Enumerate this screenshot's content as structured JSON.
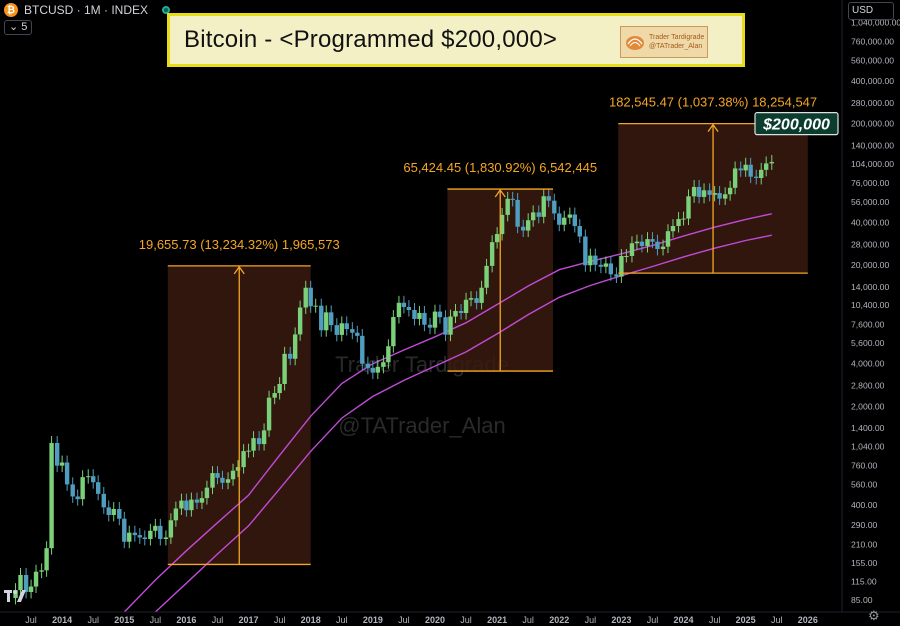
{
  "header": {
    "symbol_text": "BTCUSD · 1M · INDEX",
    "logo_glyph": "₿",
    "interval_value": "5",
    "currency": "USD"
  },
  "banner": {
    "title": "Bitcoin - <Programmed $200,000>",
    "badge_line1": "Trader Tardigrade",
    "badge_line2": "@TATrader_Alan"
  },
  "watermark": {
    "line1": "Trader Tardigrade",
    "line2": "@TATrader_Alan"
  },
  "colors": {
    "background": "#000000",
    "up_candle": "#7bd17a",
    "down_candle": "#4f9ec0",
    "moving_average": "#c04bd6",
    "measure": "#f5a623",
    "box_fill": "#3a1a0f",
    "banner_fill": "#f2f0c4",
    "banner_border": "#e8dc16"
  },
  "chart_data": {
    "type": "candlestick",
    "scale": "log",
    "ylim": [
      70,
      1500000
    ],
    "x_tick_labels": [
      "Jul",
      "2014",
      "Jul",
      "2015",
      "Jul",
      "2016",
      "Jul",
      "2017",
      "Jul",
      "2018",
      "Jul",
      "2019",
      "Jul",
      "2020",
      "Jul",
      "2021",
      "Jul",
      "2022",
      "Jul",
      "2023",
      "Jul",
      "2024",
      "Jul",
      "2025",
      "Jul",
      "2026",
      "Jul"
    ],
    "x_ticks": [
      2013.5,
      2014,
      2014.5,
      2015,
      2015.5,
      2016,
      2016.5,
      2017,
      2017.5,
      2018,
      2018.5,
      2019,
      2019.5,
      2020,
      2020.5,
      2021,
      2021.5,
      2022,
      2022.5,
      2023,
      2023.5,
      2024,
      2024.5,
      2025,
      2025.5,
      2026,
      2026.5
    ],
    "y_ticks": [
      85,
      115,
      155,
      210,
      290,
      400,
      560,
      760,
      1040,
      1400,
      2000,
      2800,
      4000,
      5600,
      7600,
      10400,
      14000,
      20000,
      28000,
      40000,
      56000,
      76000,
      104000,
      140000,
      200000,
      280000,
      400000,
      560000,
      760000,
      1040000
    ],
    "y_tick_labels": [
      "85.00",
      "115.00",
      "155.00",
      "210.00",
      "290.00",
      "400.00",
      "560.00",
      "760.00",
      "1,040.00",
      "1,400.00",
      "2,000.00",
      "2,800.00",
      "4,000.00",
      "5,600.00",
      "7,600.00",
      "10,400.00",
      "14,000.00",
      "20,000.00",
      "28,000.00",
      "40,000.00",
      "56,000.00",
      "76,000.00",
      "104,000.00",
      "140,000.00",
      "200,000.00",
      "280,000.00",
      "400,000.00",
      "560,000.00",
      "760,000.00",
      "1,040,000.00"
    ],
    "monthly_close": [
      [
        2013.25,
        100
      ],
      [
        2013.33,
        128
      ],
      [
        2013.42,
        97
      ],
      [
        2013.5,
        106
      ],
      [
        2013.58,
        135
      ],
      [
        2013.67,
        138
      ],
      [
        2013.75,
        198
      ],
      [
        2013.83,
        1100
      ],
      [
        2013.92,
        760
      ],
      [
        2014.0,
        800
      ],
      [
        2014.08,
        560
      ],
      [
        2014.17,
        460
      ],
      [
        2014.25,
        440
      ],
      [
        2014.33,
        630
      ],
      [
        2014.42,
        640
      ],
      [
        2014.5,
        580
      ],
      [
        2014.58,
        480
      ],
      [
        2014.67,
        385
      ],
      [
        2014.75,
        340
      ],
      [
        2014.83,
        375
      ],
      [
        2014.92,
        320
      ],
      [
        2015.0,
        220
      ],
      [
        2015.08,
        255
      ],
      [
        2015.17,
        245
      ],
      [
        2015.25,
        236
      ],
      [
        2015.33,
        230
      ],
      [
        2015.42,
        263
      ],
      [
        2015.5,
        285
      ],
      [
        2015.58,
        230
      ],
      [
        2015.67,
        236
      ],
      [
        2015.75,
        312
      ],
      [
        2015.83,
        378
      ],
      [
        2015.92,
        430
      ],
      [
        2016.0,
        368
      ],
      [
        2016.08,
        437
      ],
      [
        2016.17,
        416
      ],
      [
        2016.25,
        448
      ],
      [
        2016.33,
        531
      ],
      [
        2016.42,
        673
      ],
      [
        2016.5,
        624
      ],
      [
        2016.58,
        575
      ],
      [
        2016.67,
        609
      ],
      [
        2016.75,
        700
      ],
      [
        2016.83,
        742
      ],
      [
        2016.92,
        963
      ],
      [
        2017.0,
        970
      ],
      [
        2017.08,
        1190
      ],
      [
        2017.17,
        1080
      ],
      [
        2017.25,
        1350
      ],
      [
        2017.33,
        2300
      ],
      [
        2017.42,
        2480
      ],
      [
        2017.5,
        2875
      ],
      [
        2017.58,
        4700
      ],
      [
        2017.67,
        4340
      ],
      [
        2017.75,
        6450
      ],
      [
        2017.83,
        10000
      ],
      [
        2017.92,
        13800
      ],
      [
        2018.0,
        10200
      ],
      [
        2018.08,
        10300
      ],
      [
        2018.17,
        6900
      ],
      [
        2018.25,
        9240
      ],
      [
        2018.33,
        7500
      ],
      [
        2018.42,
        6400
      ],
      [
        2018.5,
        7730
      ],
      [
        2018.58,
        7030
      ],
      [
        2018.67,
        6630
      ],
      [
        2018.75,
        6300
      ],
      [
        2018.83,
        4000
      ],
      [
        2018.92,
        3740
      ],
      [
        2019.0,
        3460
      ],
      [
        2019.08,
        3800
      ],
      [
        2019.17,
        4100
      ],
      [
        2019.25,
        5320
      ],
      [
        2019.33,
        8560
      ],
      [
        2019.42,
        10800
      ],
      [
        2019.5,
        10080
      ],
      [
        2019.58,
        9600
      ],
      [
        2019.67,
        8300
      ],
      [
        2019.75,
        9150
      ],
      [
        2019.83,
        7550
      ],
      [
        2019.92,
        7200
      ],
      [
        2020.0,
        9350
      ],
      [
        2020.08,
        8540
      ],
      [
        2020.17,
        6420
      ],
      [
        2020.25,
        8630
      ],
      [
        2020.33,
        9450
      ],
      [
        2020.42,
        9140
      ],
      [
        2020.5,
        11350
      ],
      [
        2020.58,
        11650
      ],
      [
        2020.67,
        10780
      ],
      [
        2020.75,
        13800
      ],
      [
        2020.83,
        19700
      ],
      [
        2020.92,
        29000
      ],
      [
        2021.0,
        33100
      ],
      [
        2021.08,
        45200
      ],
      [
        2021.17,
        58800
      ],
      [
        2021.25,
        57700
      ],
      [
        2021.33,
        37300
      ],
      [
        2021.42,
        35040
      ],
      [
        2021.5,
        41460
      ],
      [
        2021.58,
        47100
      ],
      [
        2021.67,
        43800
      ],
      [
        2021.75,
        61300
      ],
      [
        2021.83,
        57000
      ],
      [
        2021.92,
        46300
      ],
      [
        2022.0,
        38500
      ],
      [
        2022.08,
        43200
      ],
      [
        2022.17,
        45500
      ],
      [
        2022.25,
        37700
      ],
      [
        2022.33,
        31800
      ],
      [
        2022.42,
        19900
      ],
      [
        2022.5,
        23300
      ],
      [
        2022.58,
        20050
      ],
      [
        2022.67,
        19430
      ],
      [
        2022.75,
        20500
      ],
      [
        2022.83,
        17170
      ],
      [
        2022.92,
        16550
      ],
      [
        2023.0,
        23140
      ],
      [
        2023.08,
        23150
      ],
      [
        2023.17,
        28480
      ],
      [
        2023.25,
        29250
      ],
      [
        2023.33,
        27220
      ],
      [
        2023.42,
        30480
      ],
      [
        2023.5,
        29230
      ],
      [
        2023.58,
        25940
      ],
      [
        2023.67,
        26960
      ],
      [
        2023.75,
        34670
      ],
      [
        2023.83,
        37720
      ],
      [
        2023.92,
        42280
      ],
      [
        2024.0,
        42580
      ],
      [
        2024.08,
        61200
      ],
      [
        2024.17,
        71300
      ],
      [
        2024.25,
        60600
      ],
      [
        2024.33,
        67500
      ],
      [
        2024.42,
        62700
      ],
      [
        2024.5,
        64600
      ],
      [
        2024.58,
        58970
      ],
      [
        2024.67,
        63300
      ],
      [
        2024.75,
        70300
      ],
      [
        2024.83,
        96400
      ],
      [
        2024.92,
        93400
      ],
      [
        2025.0,
        102400
      ],
      [
        2025.08,
        84300
      ],
      [
        2025.17,
        82500
      ],
      [
        2025.25,
        94200
      ],
      [
        2025.33,
        104600
      ],
      [
        2025.42,
        107100
      ]
    ],
    "ma_fast": [
      [
        2015.0,
        70
      ],
      [
        2015.5,
        118
      ],
      [
        2016.0,
        190
      ],
      [
        2016.5,
        300
      ],
      [
        2017.0,
        470
      ],
      [
        2017.5,
        900
      ],
      [
        2018.0,
        1700
      ],
      [
        2018.5,
        2900
      ],
      [
        2019.0,
        4000
      ],
      [
        2019.5,
        5000
      ],
      [
        2020.0,
        6200
      ],
      [
        2020.5,
        7800
      ],
      [
        2021.0,
        10500
      ],
      [
        2021.5,
        14200
      ],
      [
        2022.0,
        18500
      ],
      [
        2022.5,
        21200
      ],
      [
        2023.0,
        24000
      ],
      [
        2023.5,
        27500
      ],
      [
        2024.0,
        32000
      ],
      [
        2024.5,
        37000
      ],
      [
        2025.0,
        42000
      ],
      [
        2025.42,
        46000
      ]
    ],
    "ma_slow": [
      [
        2015.5,
        70
      ],
      [
        2016.0,
        112
      ],
      [
        2016.5,
        180
      ],
      [
        2017.0,
        285
      ],
      [
        2017.5,
        520
      ],
      [
        2018.0,
        960
      ],
      [
        2018.5,
        1650
      ],
      [
        2019.0,
        2350
      ],
      [
        2019.5,
        3050
      ],
      [
        2020.0,
        3850
      ],
      [
        2020.5,
        4850
      ],
      [
        2021.0,
        6500
      ],
      [
        2021.5,
        8900
      ],
      [
        2022.0,
        11800
      ],
      [
        2022.5,
        14300
      ],
      [
        2023.0,
        16800
      ],
      [
        2023.5,
        19500
      ],
      [
        2024.0,
        22800
      ],
      [
        2024.5,
        26300
      ],
      [
        2025.0,
        29800
      ],
      [
        2025.42,
        32500
      ]
    ],
    "measures": [
      {
        "label": "19,655.73 (13,234.32%) 1,965,573",
        "x0": 2015.7,
        "x1": 2018.0,
        "low": 152,
        "high": 19700
      },
      {
        "label": "65,424.45 (1,830.92%) 6,542,445",
        "x0": 2020.2,
        "x1": 2021.9,
        "low": 3550,
        "high": 68900
      },
      {
        "label": "182,545.47 (1,037.38%) 18,254,547",
        "x0": 2022.95,
        "x1": 2026.0,
        "low": 17500,
        "high": 200000
      }
    ],
    "target_label": "$200,000",
    "target_value": 200000,
    "grid": false,
    "legend": "none"
  }
}
